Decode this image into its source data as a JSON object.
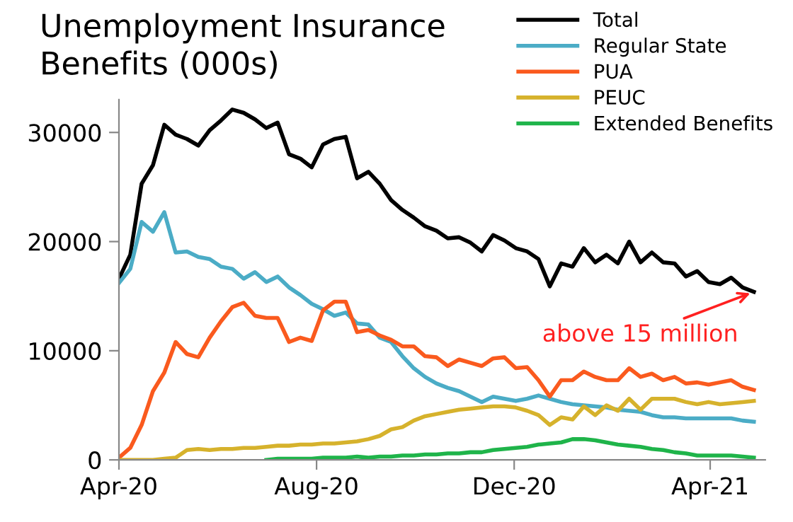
{
  "chart_data": {
    "type": "line",
    "title": "Unemployment Insurance\nBenefits (000s)",
    "x": [
      "2020-04-01",
      "2020-04-08",
      "2020-04-15",
      "2020-04-22",
      "2020-04-29",
      "2020-05-06",
      "2020-05-13",
      "2020-05-20",
      "2020-05-27",
      "2020-06-03",
      "2020-06-10",
      "2020-06-17",
      "2020-06-24",
      "2020-07-01",
      "2020-07-08",
      "2020-07-15",
      "2020-07-22",
      "2020-07-29",
      "2020-08-05",
      "2020-08-12",
      "2020-08-19",
      "2020-08-26",
      "2020-09-02",
      "2020-09-09",
      "2020-09-16",
      "2020-09-23",
      "2020-09-30",
      "2020-10-07",
      "2020-10-14",
      "2020-10-21",
      "2020-10-28",
      "2020-11-04",
      "2020-11-11",
      "2020-11-18",
      "2020-11-25",
      "2020-12-02",
      "2020-12-09",
      "2020-12-16",
      "2020-12-23",
      "2020-12-30",
      "2021-01-06",
      "2021-01-13",
      "2021-01-20",
      "2021-01-27",
      "2021-02-03",
      "2021-02-10",
      "2021-02-17",
      "2021-02-24",
      "2021-03-03",
      "2021-03-10",
      "2021-03-17",
      "2021-03-24",
      "2021-03-31",
      "2021-04-07",
      "2021-04-14",
      "2021-04-21",
      "2021-04-28"
    ],
    "series": [
      {
        "name": "Total",
        "color": "#000000",
        "values": [
          16600,
          18800,
          25300,
          27000,
          30700,
          29800,
          29400,
          28800,
          30200,
          31100,
          32100,
          31800,
          31200,
          30400,
          30900,
          28000,
          27600,
          26800,
          28900,
          29400,
          29600,
          25800,
          26400,
          25300,
          23800,
          22900,
          22200,
          21400,
          21000,
          20300,
          20400,
          19900,
          19100,
          20600,
          20100,
          19400,
          19100,
          18400,
          15900,
          18000,
          17700,
          19400,
          18100,
          18800,
          18000,
          20000,
          18100,
          19000,
          18100,
          18000,
          16800,
          17300,
          16300,
          16100,
          16700,
          15800,
          15400
        ]
      },
      {
        "name": "Regular State",
        "color": "#4bacc6",
        "values": [
          16200,
          17500,
          21800,
          20900,
          22700,
          19000,
          19100,
          18600,
          18400,
          17700,
          17500,
          16600,
          17200,
          16300,
          16800,
          15800,
          15100,
          14300,
          13800,
          13200,
          13500,
          12500,
          12400,
          11200,
          10800,
          9500,
          8400,
          7600,
          7000,
          6600,
          6300,
          5800,
          5300,
          5800,
          5600,
          5400,
          5600,
          5900,
          5600,
          5300,
          5100,
          5000,
          4900,
          4800,
          4600,
          4500,
          4400,
          4100,
          3900,
          3900,
          3800,
          3800,
          3800,
          3800,
          3800,
          3600,
          3500
        ]
      },
      {
        "name": "PUA",
        "color": "#fa5a1e",
        "values": [
          200,
          1100,
          3200,
          6300,
          8000,
          10800,
          9700,
          9400,
          11200,
          12700,
          14000,
          14400,
          13200,
          13000,
          13000,
          10800,
          11200,
          10900,
          13700,
          14500,
          14500,
          11700,
          11900,
          11400,
          11000,
          10400,
          10400,
          9500,
          9400,
          8600,
          9200,
          8900,
          8600,
          9300,
          9400,
          8400,
          8500,
          7300,
          5800,
          7300,
          7300,
          8100,
          7600,
          7300,
          7300,
          8400,
          7600,
          7900,
          7300,
          7600,
          7000,
          7100,
          6900,
          7100,
          7300,
          6700,
          6400
        ]
      },
      {
        "name": "PEUC",
        "color": "#d6b22c",
        "values": [
          0,
          0,
          0,
          0,
          100,
          200,
          900,
          1000,
          900,
          1000,
          1000,
          1100,
          1100,
          1200,
          1300,
          1300,
          1400,
          1400,
          1500,
          1500,
          1600,
          1700,
          1900,
          2200,
          2800,
          3000,
          3600,
          4000,
          4200,
          4400,
          4600,
          4700,
          4800,
          4900,
          4900,
          4800,
          4500,
          4100,
          3200,
          3900,
          3700,
          4900,
          4100,
          5000,
          4500,
          5600,
          4600,
          5600,
          5600,
          5600,
          5300,
          5100,
          5300,
          5100,
          5200,
          5300,
          5400
        ]
      },
      {
        "name": "Extended Benefits",
        "color": "#1fb44a",
        "values": [
          null,
          null,
          null,
          null,
          null,
          null,
          null,
          null,
          null,
          null,
          null,
          null,
          null,
          0,
          100,
          100,
          100,
          100,
          200,
          200,
          200,
          300,
          200,
          300,
          300,
          400,
          400,
          500,
          500,
          600,
          600,
          700,
          700,
          900,
          1000,
          1100,
          1200,
          1400,
          1500,
          1600,
          1900,
          1900,
          1800,
          1600,
          1400,
          1300,
          1200,
          1000,
          900,
          700,
          600,
          400,
          400,
          400,
          400,
          300,
          200
        ]
      }
    ],
    "xlim": [
      "2020-04-01",
      "2021-05-05"
    ],
    "xticks": [
      {
        "value": "2020-04-01",
        "label": "Apr-20"
      },
      {
        "value": "2020-08-01",
        "label": "Aug-20"
      },
      {
        "value": "2020-12-01",
        "label": "Dec-20"
      },
      {
        "value": "2021-04-01",
        "label": "Apr-21"
      }
    ],
    "ylim": [
      0,
      33000
    ],
    "yticks": [
      0,
      10000,
      20000,
      30000
    ],
    "grid": false,
    "legend": "top right",
    "line_style": "solid",
    "annotations": [
      {
        "text": "above 15 million",
        "x": "2021-04-28",
        "y": 15400
      }
    ]
  }
}
